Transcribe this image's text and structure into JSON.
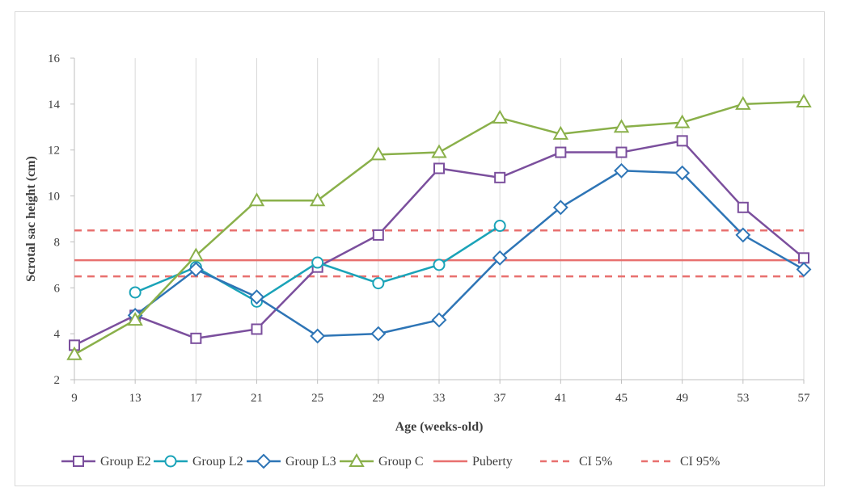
{
  "chart_data": {
    "type": "line",
    "xlabel": "Age (weeks-old)",
    "ylabel": "Scrotal sac height (cm)",
    "x": [
      9,
      13,
      17,
      21,
      25,
      29,
      33,
      37,
      41,
      45,
      49,
      53,
      57
    ],
    "ylim": [
      2,
      16
    ],
    "yticks": [
      2,
      4,
      6,
      8,
      10,
      12,
      14,
      16
    ],
    "grid": "vertical",
    "legend_position": "bottom",
    "series": [
      {
        "name": "Group E2",
        "color": "#7b4f9d",
        "marker": "square",
        "dash": "solid",
        "values": [
          3.5,
          4.8,
          3.8,
          4.2,
          6.9,
          8.3,
          11.2,
          10.8,
          11.9,
          11.9,
          12.4,
          9.5,
          7.3
        ]
      },
      {
        "name": "Group L2",
        "color": "#1aa3b8",
        "marker": "circle",
        "dash": "solid",
        "values": [
          null,
          5.8,
          6.9,
          5.4,
          7.1,
          6.2,
          7.0,
          8.7,
          null,
          null,
          null,
          null,
          null
        ]
      },
      {
        "name": "Group L3",
        "color": "#2e75b6",
        "marker": "diamond",
        "dash": "solid",
        "values": [
          null,
          4.8,
          6.8,
          5.6,
          3.9,
          4.0,
          4.6,
          7.3,
          9.5,
          11.1,
          11.0,
          8.3,
          6.8
        ]
      },
      {
        "name": "Group C",
        "color": "#8ab04a",
        "marker": "triangle",
        "dash": "solid",
        "values": [
          3.1,
          4.6,
          7.4,
          9.8,
          9.8,
          11.8,
          11.9,
          13.4,
          12.7,
          13.0,
          13.2,
          14.0,
          14.1
        ]
      },
      {
        "name": "Puberty",
        "color": "#e8706f",
        "marker": "none",
        "dash": "solid",
        "values": [
          7.2,
          7.2,
          7.2,
          7.2,
          7.2,
          7.2,
          7.2,
          7.2,
          7.2,
          7.2,
          7.2,
          7.2,
          7.2
        ]
      },
      {
        "name": "CI 5%",
        "color": "#e8706f",
        "marker": "none",
        "dash": "dashed",
        "values": [
          6.5,
          6.5,
          6.5,
          6.5,
          6.5,
          6.5,
          6.5,
          6.5,
          6.5,
          6.5,
          6.5,
          6.5,
          6.5
        ]
      },
      {
        "name": "CI 95%",
        "color": "#e8706f",
        "marker": "none",
        "dash": "dashed",
        "values": [
          8.5,
          8.5,
          8.5,
          8.5,
          8.5,
          8.5,
          8.5,
          8.5,
          8.5,
          8.5,
          8.5,
          8.5,
          8.5
        ]
      }
    ]
  }
}
